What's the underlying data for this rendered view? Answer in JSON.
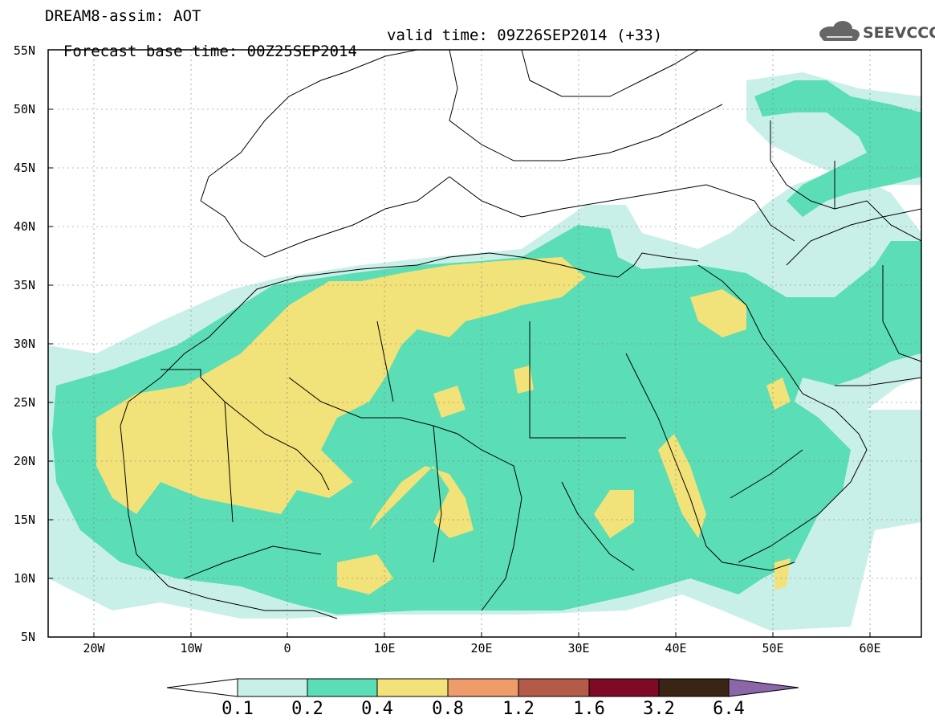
{
  "header": {
    "title_line1": "DREAM8-assim: AOT",
    "base_time": "Forecast base time: 00Z25SEP2014",
    "valid_time": "valid time: 09Z26SEP2014 (+33)",
    "logo_text": "SEEVCCC"
  },
  "map": {
    "lat_labels": [
      "55N",
      "50N",
      "45N",
      "40N",
      "35N",
      "30N",
      "25N",
      "20N",
      "15N",
      "10N",
      "5N"
    ],
    "lon_labels": [
      "20W",
      "10W",
      "0",
      "10E",
      "20E",
      "30E",
      "40E",
      "50E",
      "60E"
    ],
    "region": "North Africa, Middle East, Europe",
    "lat_range": [
      5,
      55
    ],
    "lon_range": [
      -25,
      65
    ]
  },
  "colorbar": {
    "levels": [
      "0.1",
      "0.2",
      "0.4",
      "0.8",
      "1.2",
      "1.6",
      "3.2",
      "6.4"
    ],
    "colors": [
      "#c9f0e8",
      "#5bddb5",
      "#f2e27a",
      "#ee9c6a",
      "#b35a48",
      "#7f0a25",
      "#3a2413",
      "#8b66a8"
    ]
  }
}
